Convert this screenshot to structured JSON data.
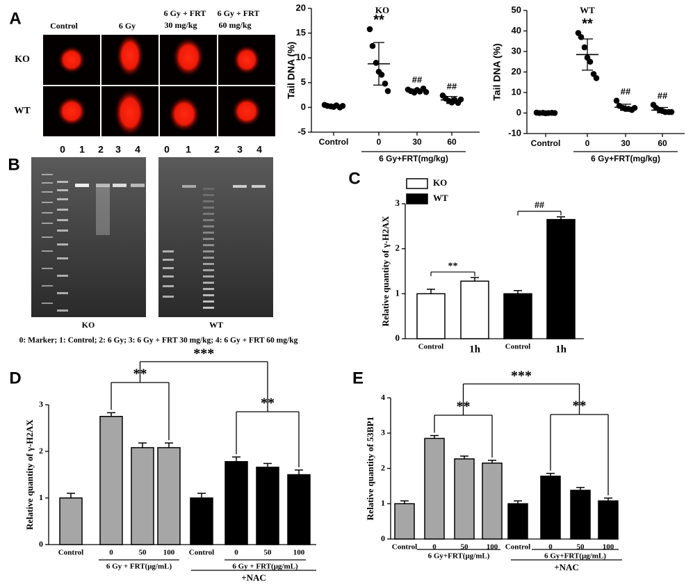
{
  "figure": {
    "panels": [
      "A",
      "B",
      "C",
      "D",
      "E"
    ],
    "comet": {
      "columns": [
        "Control",
        "6 Gy",
        "6 Gy + FRT",
        "6 Gy + FRT"
      ],
      "column_sub": [
        "30 mg/kg",
        "60 mg/kg"
      ],
      "rows": [
        "KO",
        "WT"
      ]
    },
    "gel": {
      "lanes": [
        "0",
        "1",
        "2",
        "3",
        "4"
      ],
      "labels": [
        "KO",
        "WT"
      ],
      "caption": "0: Marker; 1: Control; 2: 6 Gy; 3: 6 Gy + FRT 30 mg/kg; 4: 6 Gy + FRT 60 mg/kg"
    }
  },
  "chart_data": [
    {
      "type": "scatter",
      "title": "KO",
      "y_label": "Tail DNA (%)",
      "categories": [
        "Control",
        "0",
        "30",
        "60"
      ],
      "group_label": "6 Gy+FRT(mg/kg)",
      "color": "#000000",
      "values": [
        0.3,
        8.8,
        3.4,
        1.5
      ],
      "errors": [
        0.3,
        4.3,
        0.3,
        0.7
      ],
      "points": [
        [
          0.5,
          0.3,
          0.2,
          0.1,
          0.4,
          0.0,
          0.3
        ],
        [
          15.8,
          12.4,
          9.0,
          7.2,
          6.6,
          4.8,
          3.3
        ],
        [
          3.6,
          3.3,
          3.0,
          3.5,
          3.2,
          3.8,
          3.1
        ],
        [
          2.4,
          1.8,
          1.3,
          1.0,
          1.5,
          0.9,
          1.6
        ]
      ],
      "annotations": [
        "**",
        "##",
        "##"
      ],
      "ylim": [
        -5,
        20
      ],
      "yticks": [
        -5,
        0,
        5,
        10,
        15,
        20
      ]
    },
    {
      "type": "scatter",
      "title": "WT",
      "y_label": "Tail DNA (%)",
      "categories": [
        "Control",
        "0",
        "30",
        "60"
      ],
      "group_label": "6 Gy+FRT(mg/kg)",
      "color": "#000000",
      "values": [
        0.0,
        28.5,
        2.8,
        1.4
      ],
      "errors": [
        0.3,
        7.6,
        1.5,
        1.3
      ],
      "points": [
        [
          0.2,
          0.0,
          0.1,
          -0.1,
          0.0,
          0.1,
          0.0
        ],
        [
          39,
          37,
          32,
          27,
          25,
          19,
          17
        ],
        [
          6,
          3.5,
          2.5,
          2,
          2,
          1.5,
          2.5
        ],
        [
          4,
          2.5,
          1.5,
          1,
          0.5,
          0.5,
          0.5
        ]
      ],
      "annotations": [
        "**",
        "##",
        "##"
      ],
      "ylim": [
        -10,
        50
      ],
      "yticks": [
        -10,
        0,
        10,
        20,
        30,
        40,
        50
      ]
    },
    {
      "type": "bar",
      "y_label": "Relative quantity of γ-H2AX",
      "categories": [
        "Control",
        "1h"
      ],
      "series": [
        {
          "name": "KO",
          "color": "#ffffff",
          "values": [
            1.0,
            1.28
          ],
          "errors": [
            0.1,
            0.08
          ]
        },
        {
          "name": "WT",
          "color": "#000000",
          "values": [
            1.0,
            2.65
          ],
          "errors": [
            0.07,
            0.06
          ]
        }
      ],
      "annotations": [
        "**",
        "##"
      ],
      "ylim": [
        0,
        3
      ],
      "yticks": [
        0,
        1,
        2,
        3
      ]
    },
    {
      "type": "bar",
      "y_label": "Relative quantity of  γ-H2AX",
      "categories": [
        "Control",
        "0",
        "50",
        "100"
      ],
      "group_label": "6 Gy + FRT(μg/mL)",
      "extra_label": "+NAC",
      "series": [
        {
          "color": "#a6a6a6",
          "values": [
            1.0,
            2.75,
            2.08,
            2.08
          ],
          "errors": [
            0.1,
            0.08,
            0.1,
            0.1
          ]
        },
        {
          "color": "#000000",
          "values": [
            1.0,
            1.78,
            1.66,
            1.5
          ],
          "errors": [
            0.1,
            0.1,
            0.08,
            0.1
          ]
        }
      ],
      "annotations": [
        "**",
        "**",
        "***"
      ],
      "ylim": [
        0,
        3
      ],
      "yticks": [
        0,
        1,
        2,
        3
      ]
    },
    {
      "type": "bar",
      "y_label": "Relative quantity of 53BP1",
      "categories": [
        "Control",
        "0",
        "50",
        "100"
      ],
      "group_label": "6 Gy+FRT(μg/mL)",
      "extra_label": "+NAC",
      "series": [
        {
          "color": "#a6a6a6",
          "values": [
            1.0,
            2.85,
            2.27,
            2.15
          ],
          "errors": [
            0.08,
            0.08,
            0.08,
            0.08
          ]
        },
        {
          "color": "#000000",
          "values": [
            1.0,
            1.78,
            1.38,
            1.08
          ],
          "errors": [
            0.08,
            0.08,
            0.08,
            0.08
          ]
        }
      ],
      "annotations": [
        "**",
        "**",
        "***"
      ],
      "ylim": [
        0,
        4
      ],
      "yticks": [
        0,
        1,
        2,
        3,
        4
      ]
    }
  ]
}
